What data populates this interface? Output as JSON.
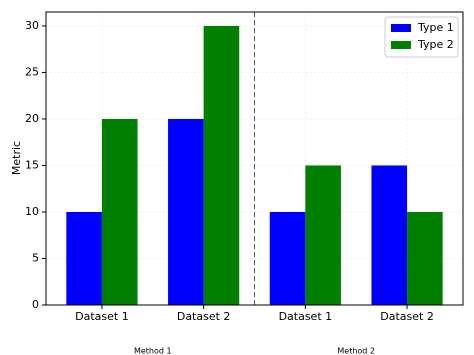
{
  "chart_data": {
    "type": "bar",
    "categories": [
      "Dataset 1",
      "Dataset 2",
      "Dataset 1",
      "Dataset 2"
    ],
    "group_labels": [
      "Method 1",
      "Method 2"
    ],
    "series": [
      {
        "name": "Type 1",
        "color": "#0000ff",
        "values": [
          10,
          20,
          10,
          15
        ]
      },
      {
        "name": "Type 2",
        "color": "#008000",
        "values": [
          20,
          30,
          15,
          10
        ]
      }
    ],
    "ylabel": "Metric",
    "ylim": [
      0,
      31.5
    ],
    "yticks": [
      0,
      5,
      10,
      15,
      20,
      25,
      30
    ],
    "grid": true,
    "legend": "upper right"
  }
}
